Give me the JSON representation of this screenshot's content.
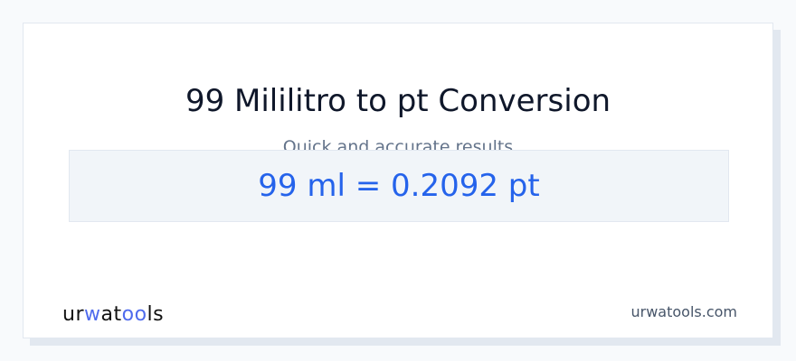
{
  "title": "99 Mililitro to pt Conversion",
  "subtitle": "Quick and accurate results",
  "result": "99 ml = 0.2092 pt",
  "logo": {
    "p1": "ur",
    "p2": "w",
    "p3": "at",
    "p4": "oo",
    "p5": "ls"
  },
  "site": "urwatools.com",
  "colors": {
    "accent": "#2563eb",
    "logo_accent": "#4f6bed"
  }
}
